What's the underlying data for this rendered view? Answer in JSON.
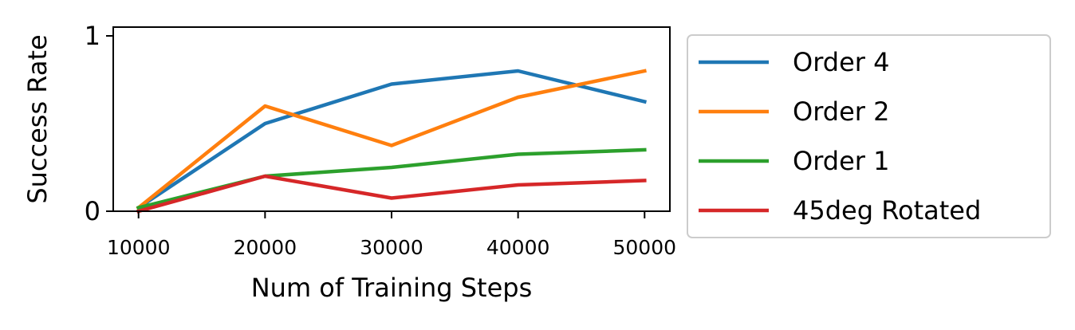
{
  "chart_data": {
    "type": "line",
    "title": "",
    "xlabel": "Num of Training Steps",
    "ylabel": "Success Rate",
    "x": [
      10000,
      20000,
      30000,
      40000,
      50000
    ],
    "x_ticks": [
      "10000",
      "20000",
      "30000",
      "40000",
      "50000"
    ],
    "y_ticks": [
      "0",
      "1"
    ],
    "xlim": [
      8000,
      52000
    ],
    "ylim": [
      0,
      1.05
    ],
    "grid": false,
    "legend_position": "outside-right",
    "series": [
      {
        "name": "Order 4",
        "color": "#1f77b4",
        "values": [
          0.02,
          0.5,
          0.725,
          0.8,
          0.625
        ]
      },
      {
        "name": "Order 2",
        "color": "#ff7f0e",
        "values": [
          0.02,
          0.6,
          0.375,
          0.65,
          0.8
        ]
      },
      {
        "name": "Order 1",
        "color": "#2ca02c",
        "values": [
          0.02,
          0.2,
          0.25,
          0.325,
          0.35
        ]
      },
      {
        "name": "45deg Rotated",
        "color": "#d62728",
        "values": [
          0.0,
          0.2,
          0.075,
          0.15,
          0.175
        ]
      }
    ]
  }
}
